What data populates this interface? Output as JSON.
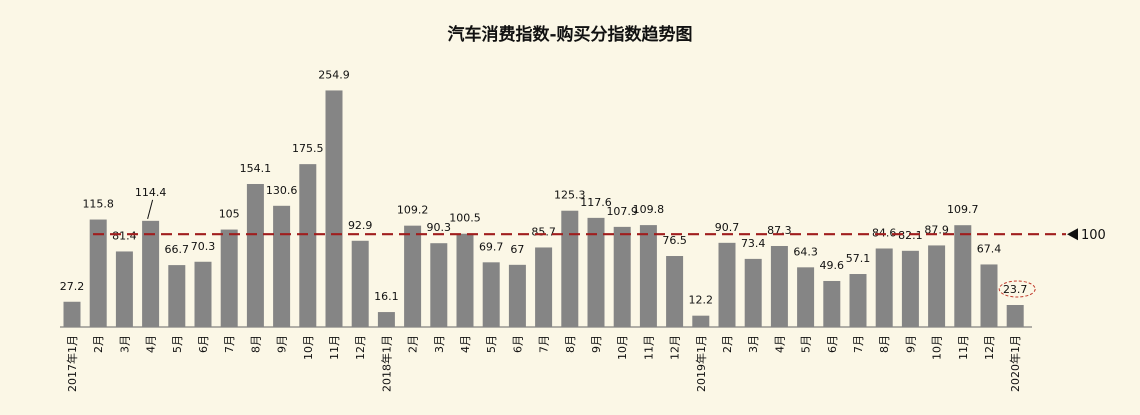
{
  "chart_data": {
    "type": "bar",
    "title": "汽车消费指数-购买分指数趋势图",
    "categories": [
      "2017年1月",
      "2月",
      "3月",
      "4月",
      "5月",
      "6月",
      "7月",
      "8月",
      "9月",
      "10月",
      "11月",
      "12月",
      "2018年1月",
      "2月",
      "3月",
      "4月",
      "5月",
      "6月",
      "7月",
      "8月",
      "9月",
      "10月",
      "11月",
      "12月",
      "2019年1月",
      "2月",
      "3月",
      "4月",
      "5月",
      "6月",
      "7月",
      "8月",
      "9月",
      "10月",
      "11月",
      "12月",
      "2020年1月"
    ],
    "values": [
      27.2,
      115.8,
      81.4,
      114.4,
      66.7,
      70.3,
      105,
      154.1,
      130.6,
      175.5,
      254.9,
      92.9,
      16.1,
      109.2,
      90.3,
      100.5,
      69.7,
      67,
      85.7,
      125.3,
      117.6,
      107.9,
      109.8,
      76.5,
      12.2,
      90.7,
      73.4,
      87.3,
      64.3,
      49.6,
      57.1,
      84.6,
      82.1,
      87.9,
      109.7,
      67.4,
      23.7
    ],
    "value_labels": [
      "27.2",
      "115.8",
      "81.4",
      "114.4",
      "66.7",
      "70.3",
      "105",
      "154.1",
      "130.6",
      "175.5",
      "254.9",
      "92.9",
      "16.1",
      "109.2",
      "90.3",
      "100.5",
      "69.7",
      "67",
      "85.7",
      "125.3",
      "117.6",
      "107.9",
      "109.8",
      "76.5",
      "12.2",
      "90.7",
      "73.4",
      "87.3",
      "64.3",
      "49.6",
      "57.1",
      "84.6",
      "82.1",
      "87.9",
      "109.7",
      "67.4",
      "23.7"
    ],
    "reference_line": {
      "value": 100,
      "label": "100",
      "color": "#a01e1e",
      "style": "dashed"
    },
    "highlight": {
      "category": "2020年1月",
      "style": "red dashed ellipse"
    },
    "bar_color": "#858585",
    "background": "#fbf7e6",
    "ylim": [
      0,
      260
    ],
    "grid": false,
    "legend": "none"
  }
}
